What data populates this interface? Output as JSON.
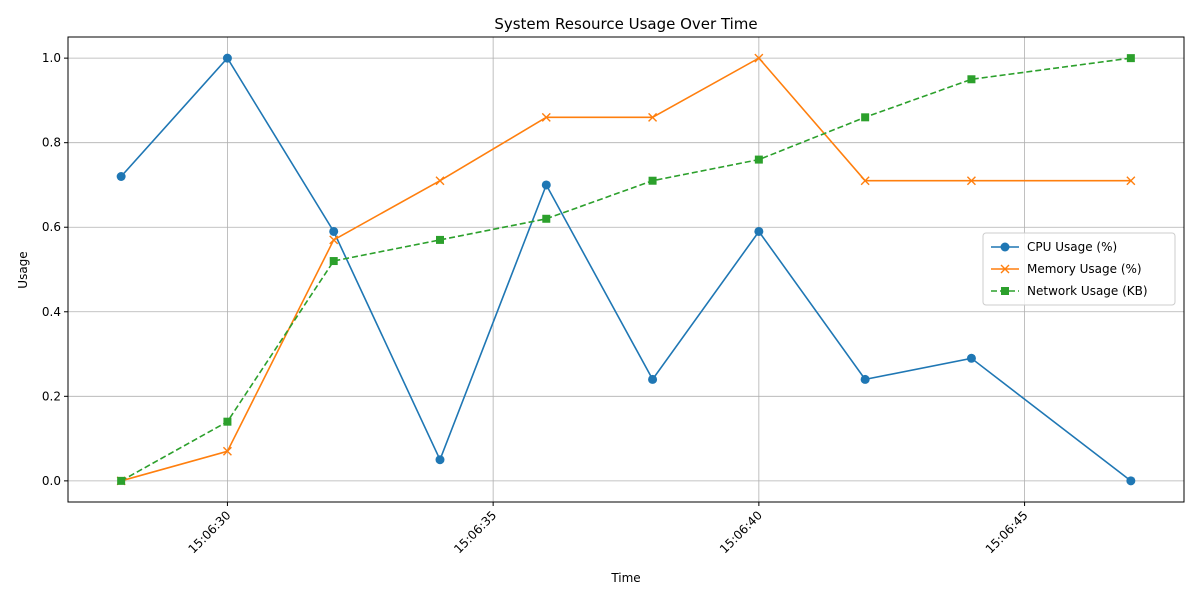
{
  "chart_data": {
    "type": "line",
    "title": "System Resource Usage Over Time",
    "xlabel": "Time",
    "ylabel": "Usage",
    "x": [
      "15:06:28",
      "15:06:30",
      "15:06:32",
      "15:06:34",
      "15:06:36",
      "15:06:38",
      "15:06:40",
      "15:06:42",
      "15:06:44",
      "15:06:47"
    ],
    "x_ticks": [
      "15:06:30",
      "15:06:35",
      "15:06:40",
      "15:06:45"
    ],
    "xlim": [
      "15:06:27.0",
      "15:06:48.0"
    ],
    "y_ticks": [
      "0.0",
      "0.2",
      "0.4",
      "0.6",
      "0.8",
      "1.0"
    ],
    "ylim": [
      -0.05,
      1.05
    ],
    "grid": true,
    "legend_position": "center-right",
    "series": [
      {
        "name": "CPU Usage (%)",
        "color": "#1f77b4",
        "marker": "circle",
        "dash": "solid",
        "values": [
          0.72,
          1.0,
          0.59,
          0.05,
          0.7,
          0.24,
          0.59,
          0.24,
          0.29,
          0.0
        ]
      },
      {
        "name": "Memory Usage (%)",
        "color": "#ff7f0e",
        "marker": "x",
        "dash": "solid",
        "values": [
          0.0,
          0.07,
          0.57,
          0.71,
          0.86,
          0.86,
          1.0,
          0.71,
          0.71,
          0.71
        ]
      },
      {
        "name": "Network Usage (KB)",
        "color": "#2ca02c",
        "marker": "square",
        "dash": "dashed",
        "values": [
          0.0,
          0.14,
          0.52,
          0.57,
          0.62,
          0.71,
          0.76,
          0.86,
          0.95,
          1.0
        ]
      }
    ]
  }
}
